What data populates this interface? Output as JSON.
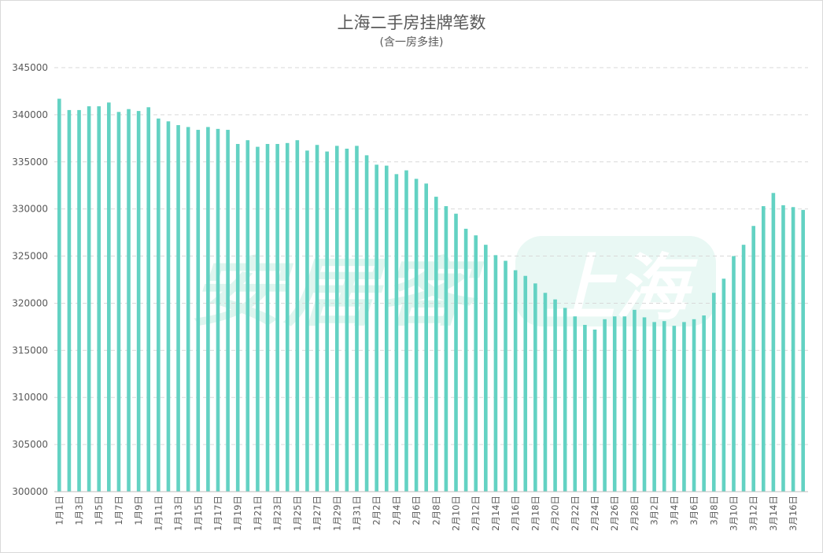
{
  "chart_data": {
    "type": "bar",
    "title": "上海二手房挂牌笔数",
    "subtitle": "(含一房多挂)",
    "xlabel": "",
    "ylabel": "",
    "ylim": [
      300000,
      345000
    ],
    "yticks": [
      300000,
      305000,
      310000,
      315000,
      320000,
      325000,
      330000,
      335000,
      340000,
      345000
    ],
    "grid": "horizontal dashed",
    "legend": "none",
    "bar_color": "#63d2c3",
    "categories": [
      "1月1日",
      "1月2日",
      "1月3日",
      "1月4日",
      "1月5日",
      "1月6日",
      "1月7日",
      "1月8日",
      "1月9日",
      "1月10日",
      "1月11日",
      "1月12日",
      "1月13日",
      "1月14日",
      "1月15日",
      "1月16日",
      "1月17日",
      "1月18日",
      "1月19日",
      "1月20日",
      "1月21日",
      "1月22日",
      "1月23日",
      "1月24日",
      "1月25日",
      "1月26日",
      "1月27日",
      "1月28日",
      "1月29日",
      "1月30日",
      "1月31日",
      "2月1日",
      "2月2日",
      "2月3日",
      "2月4日",
      "2月5日",
      "2月6日",
      "2月7日",
      "2月8日",
      "2月9日",
      "2月10日",
      "2月11日",
      "2月12日",
      "2月13日",
      "2月14日",
      "2月15日",
      "2月16日",
      "2月17日",
      "2月18日",
      "2月19日",
      "2月20日",
      "2月21日",
      "2月22日",
      "2月23日",
      "2月24日",
      "2月25日",
      "2月26日",
      "2月27日",
      "2月28日",
      "3月1日",
      "3月2日",
      "3月3日",
      "3月4日",
      "3月5日",
      "3月6日",
      "3月7日",
      "3月8日",
      "3月9日",
      "3月10日",
      "3月11日",
      "3月12日",
      "3月13日",
      "3月14日",
      "3月15日",
      "3月16日",
      "3月17日"
    ],
    "tick_labels": [
      "1月1日",
      "1月3日",
      "1月5日",
      "1月7日",
      "1月9日",
      "1月11日",
      "1月13日",
      "1月15日",
      "1月17日",
      "1月19日",
      "1月21日",
      "1月23日",
      "1月25日",
      "1月27日",
      "1月29日",
      "1月31日",
      "2月2日",
      "2月4日",
      "2月6日",
      "2月8日",
      "2月10日",
      "2月12日",
      "2月14日",
      "2月16日",
      "2月18日",
      "2月20日",
      "2月22日",
      "2月24日",
      "2月26日",
      "2月28日",
      "3月2日",
      "3月4日",
      "3月6日",
      "3月8日",
      "3月10日",
      "3月12日",
      "3月14日",
      "3月16日"
    ],
    "values": [
      341700,
      340500,
      340500,
      340900,
      340900,
      341300,
      340300,
      340600,
      340400,
      340800,
      339600,
      339300,
      338900,
      338700,
      338400,
      338700,
      338500,
      338400,
      336900,
      337300,
      336600,
      336900,
      336900,
      337000,
      337300,
      336200,
      336800,
      336100,
      336700,
      336400,
      336700,
      335700,
      334700,
      334600,
      333700,
      334100,
      333200,
      332700,
      331300,
      330300,
      329500,
      327900,
      327200,
      326200,
      325100,
      324500,
      323500,
      322900,
      322100,
      321100,
      320400,
      319500,
      318600,
      317700,
      317200,
      318300,
      318600,
      318600,
      319300,
      318500,
      318000,
      318100,
      317600,
      318000,
      318300,
      318700,
      321100,
      322600,
      325000,
      326200,
      328200,
      330300,
      331700,
      330400,
      330200,
      329900
    ]
  },
  "watermark": {
    "left_text": "安居客",
    "right_text": "上海",
    "color": "#dff5ef"
  }
}
